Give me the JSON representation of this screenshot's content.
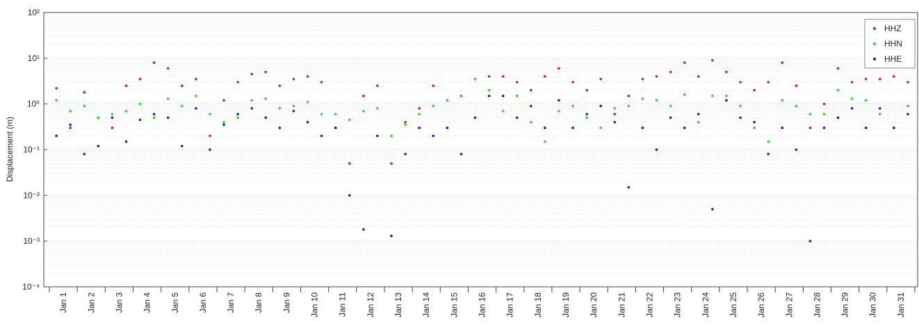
{
  "chart_data": {
    "type": "scatter",
    "y_label": "Displacement (m)",
    "log_y": true,
    "grid": true,
    "legend": "northeast",
    "xlim": [
      -0.2,
      31.1
    ],
    "xticks": [
      {
        "value": 0.5,
        "label": "Jan 1"
      },
      {
        "value": 1.5,
        "label": "Jan 2"
      },
      {
        "value": 2.5,
        "label": "Jan 3"
      },
      {
        "value": 3.5,
        "label": "Jan 4"
      },
      {
        "value": 4.5,
        "label": "Jan 5"
      },
      {
        "value": 5.5,
        "label": "Jan 6"
      },
      {
        "value": 6.5,
        "label": "Jan 7"
      },
      {
        "value": 7.5,
        "label": "Jan 8"
      },
      {
        "value": 8.5,
        "label": "Jan 9"
      },
      {
        "value": 9.5,
        "label": "Jan 10"
      },
      {
        "value": 10.5,
        "label": "Jan 11"
      },
      {
        "value": 11.5,
        "label": "Jan 12"
      },
      {
        "value": 12.5,
        "label": "Jan 13"
      },
      {
        "value": 13.5,
        "label": "Jan 14"
      },
      {
        "value": 14.5,
        "label": "Jan 15"
      },
      {
        "value": 15.5,
        "label": "Jan 16"
      },
      {
        "value": 16.5,
        "label": "Jan 17"
      },
      {
        "value": 17.5,
        "label": "Jan 18"
      },
      {
        "value": 18.5,
        "label": "Jan 19"
      },
      {
        "value": 19.5,
        "label": "Jan 20"
      },
      {
        "value": 20.5,
        "label": "Jan 21"
      },
      {
        "value": 21.5,
        "label": "Jan 22"
      },
      {
        "value": 22.5,
        "label": "Jan 23"
      },
      {
        "value": 23.5,
        "label": "Jan 24"
      },
      {
        "value": 24.5,
        "label": "Jan 25"
      },
      {
        "value": 25.5,
        "label": "Jan 26"
      },
      {
        "value": 26.5,
        "label": "Jan 27"
      },
      {
        "value": 27.5,
        "label": "Jan 28"
      },
      {
        "value": 28.5,
        "label": "Jan 29"
      },
      {
        "value": 29.5,
        "label": "Jan 30"
      },
      {
        "value": 30.5,
        "label": "Jan 31"
      }
    ],
    "ylim": [
      0.0001,
      100
    ],
    "yticks": [
      {
        "value": 0.0001,
        "label": "10⁻⁴"
      },
      {
        "value": 0.001,
        "label": "10⁻³"
      },
      {
        "value": 0.01,
        "label": "10⁻²"
      },
      {
        "value": 0.1,
        "label": "10⁻¹"
      },
      {
        "value": 1,
        "label": "10⁰"
      },
      {
        "value": 10,
        "label": "10¹"
      },
      {
        "value": 100,
        "label": "10²"
      }
    ],
    "x": [
      0.25,
      0.75,
      1.25,
      1.75,
      2.25,
      2.75,
      3.25,
      3.75,
      4.25,
      4.75,
      5.25,
      5.75,
      6.25,
      6.75,
      7.25,
      7.75,
      8.25,
      8.75,
      9.25,
      9.75,
      10.25,
      10.75,
      11.25,
      11.75,
      12.25,
      12.75,
      13.25,
      13.75,
      14.25,
      14.75,
      15.25,
      15.75,
      16.25,
      16.75,
      17.25,
      17.75,
      18.25,
      18.75,
      19.25,
      19.75,
      20.25,
      20.75,
      21.25,
      21.75,
      22.25,
      22.75,
      23.25,
      23.75,
      24.25,
      24.75,
      25.25,
      25.75,
      26.25,
      26.75,
      27.25,
      27.75,
      28.25,
      28.75,
      29.25,
      29.75,
      30.25,
      30.75
    ],
    "series": [
      {
        "name": "HHZ",
        "color": "#d92020",
        "values": [
          2.2,
          0.3,
          1.8,
          0.5,
          0.3,
          2.5,
          3.5,
          8,
          6,
          2.5,
          3.5,
          0.2,
          1.2,
          3,
          4.5,
          5,
          2.5,
          3.5,
          4,
          3,
          0.3,
          0.05,
          1.5,
          2.5,
          0.05,
          0.4,
          0.8,
          2.5,
          1.2,
          1.5,
          3.5,
          4,
          4,
          3,
          2,
          4,
          6,
          3,
          2,
          3.5,
          0.6,
          1.5,
          3.5,
          4,
          5,
          8,
          4,
          9,
          5,
          3,
          2,
          3,
          8,
          2.5,
          0.3,
          1,
          6,
          3,
          3.5,
          3.5,
          4,
          3
        ]
      },
      {
        "name": "HHN",
        "color": "#22e022",
        "values": [
          1.2,
          0.7,
          0.9,
          0.5,
          0.6,
          0.7,
          1.0,
          0.5,
          1.3,
          0.9,
          1.5,
          0.6,
          0.4,
          0.5,
          1.2,
          1.3,
          0.8,
          0.9,
          1.1,
          0.6,
          0.6,
          0.45,
          0.7,
          0.8,
          0.2,
          0.35,
          0.6,
          0.9,
          1.2,
          1.5,
          3.5,
          2,
          0.7,
          1.5,
          0.4,
          0.15,
          0.7,
          0.9,
          0.5,
          0.3,
          0.8,
          0.9,
          1.3,
          1.2,
          0.9,
          1.6,
          0.4,
          1.5,
          1.5,
          0.9,
          0.3,
          0.15,
          1.2,
          0.9,
          0.6,
          0.6,
          2,
          1.3,
          1.2,
          0.6,
          0.3,
          0.9
        ]
      },
      {
        "name": "HHE",
        "color": "#1a1ad0",
        "values": [
          0.2,
          0.35,
          0.08,
          0.12,
          0.5,
          0.15,
          0.45,
          0.6,
          0.5,
          0.12,
          0.8,
          0.1,
          0.35,
          0.6,
          0.8,
          0.5,
          0.3,
          0.7,
          0.4,
          0.2,
          0.3,
          0.01,
          0.0018,
          0.2,
          0.0013,
          0.08,
          0.3,
          0.2,
          0.3,
          0.08,
          0.5,
          1.5,
          1.5,
          0.5,
          0.9,
          0.3,
          1.2,
          0.3,
          0.6,
          0.9,
          0.4,
          0.015,
          0.3,
          0.1,
          0.5,
          0.3,
          0.6,
          0.005,
          1.2,
          0.5,
          0.4,
          0.08,
          0.3,
          0.1,
          0.001,
          0.3,
          0.5,
          0.8,
          0.3,
          0.8,
          0.3,
          0.6
        ]
      }
    ]
  }
}
